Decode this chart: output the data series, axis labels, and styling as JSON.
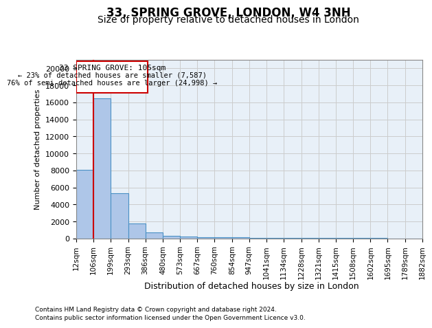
{
  "title": "33, SPRING GROVE, LONDON, W4 3NH",
  "subtitle": "Size of property relative to detached houses in London",
  "xlabel": "Distribution of detached houses by size in London",
  "ylabel": "Number of detached properties",
  "annotation_title": "33 SPRING GROVE: 105sqm",
  "annotation_line1": "← 23% of detached houses are smaller (7,587)",
  "annotation_line2": "76% of semi-detached houses are larger (24,998) →",
  "footnote1": "Contains HM Land Registry data © Crown copyright and database right 2024.",
  "footnote2": "Contains public sector information licensed under the Open Government Licence v3.0.",
  "property_size": 105,
  "bar_edges": [
    12,
    106,
    199,
    293,
    386,
    480,
    573,
    667,
    760,
    854,
    947,
    1041,
    1134,
    1228,
    1321,
    1415,
    1508,
    1602,
    1695,
    1789,
    1882
  ],
  "bar_heights": [
    8050,
    16500,
    5300,
    1750,
    700,
    350,
    250,
    200,
    150,
    130,
    110,
    100,
    90,
    80,
    70,
    60,
    55,
    50,
    40,
    35
  ],
  "bar_color": "#aec6e8",
  "bar_edge_color": "#4a90c4",
  "vline_color": "#cc0000",
  "vline_x": 106,
  "annotation_box_color": "#cc0000",
  "ylim": [
    0,
    21000
  ],
  "yticks": [
    0,
    2000,
    4000,
    6000,
    8000,
    10000,
    12000,
    14000,
    16000,
    18000,
    20000
  ],
  "grid_color": "#cccccc",
  "bg_color": "#e8f0f8",
  "title_fontsize": 12,
  "subtitle_fontsize": 10
}
